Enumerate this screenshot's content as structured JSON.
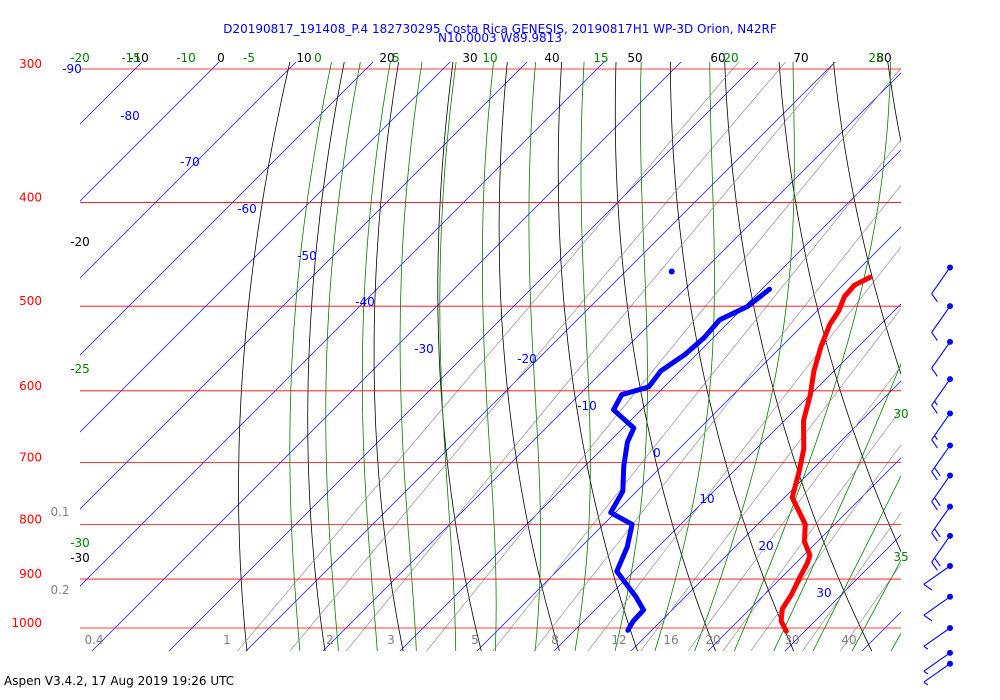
{
  "footer": "Aspen V3.4.2, 17 Aug 2019  19:26 UTC",
  "chart_data": {
    "type": "skew-t",
    "title": [
      "D20190817_191408_P.4 182730295 Costa Rica GENESIS, 20190817H1 WP-3D Orion, N42RF",
      "N10.0003 W89.9813"
    ],
    "pressure_levels_hPa": [
      "300",
      "400",
      "500",
      "600",
      "700",
      "800",
      "900",
      "1000"
    ],
    "top_isotherm_labels_black": [
      "-10",
      "0",
      "10",
      "20",
      "30",
      "40",
      "50",
      "60",
      "70",
      "80"
    ],
    "top_green_labels": [
      "-20",
      "-15",
      "-10",
      "-5",
      "0",
      "5",
      "10",
      "15",
      "20",
      "25"
    ],
    "isotherm_labels_blue": [
      "-90",
      "-80",
      "-70",
      "-60",
      "-50",
      "-40",
      "-30",
      "-20",
      "-10",
      "0",
      "10",
      "20",
      "30"
    ],
    "left_black_labels": [
      "-20",
      "-30"
    ],
    "left_green_labels": [
      "-25",
      "-30"
    ],
    "right_green_labels": [
      "30",
      "35"
    ],
    "mixing_ratio_labels": [
      "0.1",
      "0.2",
      "0.4",
      "1",
      "2",
      "3",
      "5",
      "8",
      "12",
      "16",
      "20",
      "30",
      "40"
    ],
    "colors": {
      "isobar": "#ff0000",
      "isotherm": "#0000ff",
      "dry_adiabat": "#000000",
      "moist_adiabat": "#008000",
      "mixing_ratio": "#808080",
      "temperature": "#ff0000",
      "dewpoint": "#0000ff",
      "title": "#0000ff"
    },
    "temperature_profile": [
      {
        "p": 470,
        "t": -7.5
      },
      {
        "p": 478,
        "t": -8.5
      },
      {
        "p": 490,
        "t": -8.3
      },
      {
        "p": 505,
        "t": -7.2
      },
      {
        "p": 520,
        "t": -6.6
      },
      {
        "p": 545,
        "t": -4.9
      },
      {
        "p": 575,
        "t": -2.6
      },
      {
        "p": 605,
        "t": 0.0
      },
      {
        "p": 640,
        "t": 2.5
      },
      {
        "p": 680,
        "t": 6.2
      },
      {
        "p": 715,
        "t": 8.6
      },
      {
        "p": 755,
        "t": 11.0
      },
      {
        "p": 800,
        "t": 16.2
      },
      {
        "p": 830,
        "t": 18.3
      },
      {
        "p": 855,
        "t": 20.8
      },
      {
        "p": 870,
        "t": 21.5
      },
      {
        "p": 895,
        "t": 22.3
      },
      {
        "p": 930,
        "t": 23.5
      },
      {
        "p": 960,
        "t": 24.2
      },
      {
        "p": 985,
        "t": 25.6
      },
      {
        "p": 1007,
        "t": 27.6
      }
    ],
    "dewpoint_profile": [
      {
        "p": 482,
        "t": -19.0
      },
      {
        "p": 500,
        "t": -19.6
      },
      {
        "p": 515,
        "t": -21.5
      },
      {
        "p": 535,
        "t": -21.2
      },
      {
        "p": 555,
        "t": -21.5
      },
      {
        "p": 575,
        "t": -22.5
      },
      {
        "p": 595,
        "t": -22.0
      },
      {
        "p": 605,
        "t": -24.5
      },
      {
        "p": 625,
        "t": -23.6
      },
      {
        "p": 650,
        "t": -18.6
      },
      {
        "p": 670,
        "t": -17.6
      },
      {
        "p": 705,
        "t": -15.0
      },
      {
        "p": 745,
        "t": -11.8
      },
      {
        "p": 780,
        "t": -10.6
      },
      {
        "p": 800,
        "t": -6.3
      },
      {
        "p": 840,
        "t": -4.0
      },
      {
        "p": 885,
        "t": -2.2
      },
      {
        "p": 902,
        "t": -0.2
      },
      {
        "p": 935,
        "t": 3.6
      },
      {
        "p": 962,
        "t": 6.3
      },
      {
        "p": 985,
        "t": 6.4
      },
      {
        "p": 1005,
        "t": 6.9
      }
    ],
    "dewpoint_isolated_point": {
      "p": 464,
      "t": -34.0
    },
    "wind_barbs": [
      {
        "p": 460,
        "speed_kt": 10
      },
      {
        "p": 500,
        "speed_kt": 10
      },
      {
        "p": 540,
        "speed_kt": 10
      },
      {
        "p": 585,
        "speed_kt": 15
      },
      {
        "p": 630,
        "speed_kt": 15
      },
      {
        "p": 675,
        "speed_kt": 20
      },
      {
        "p": 720,
        "speed_kt": 20
      },
      {
        "p": 770,
        "speed_kt": 20
      },
      {
        "p": 820,
        "speed_kt": 20
      },
      {
        "p": 875,
        "speed_kt": 10
      },
      {
        "p": 935,
        "speed_kt": 10
      },
      {
        "p": 1000,
        "speed_kt": 5
      },
      {
        "p": 1055,
        "speed_kt": 5
      },
      {
        "p": 1080,
        "speed_kt": 5
      }
    ]
  }
}
